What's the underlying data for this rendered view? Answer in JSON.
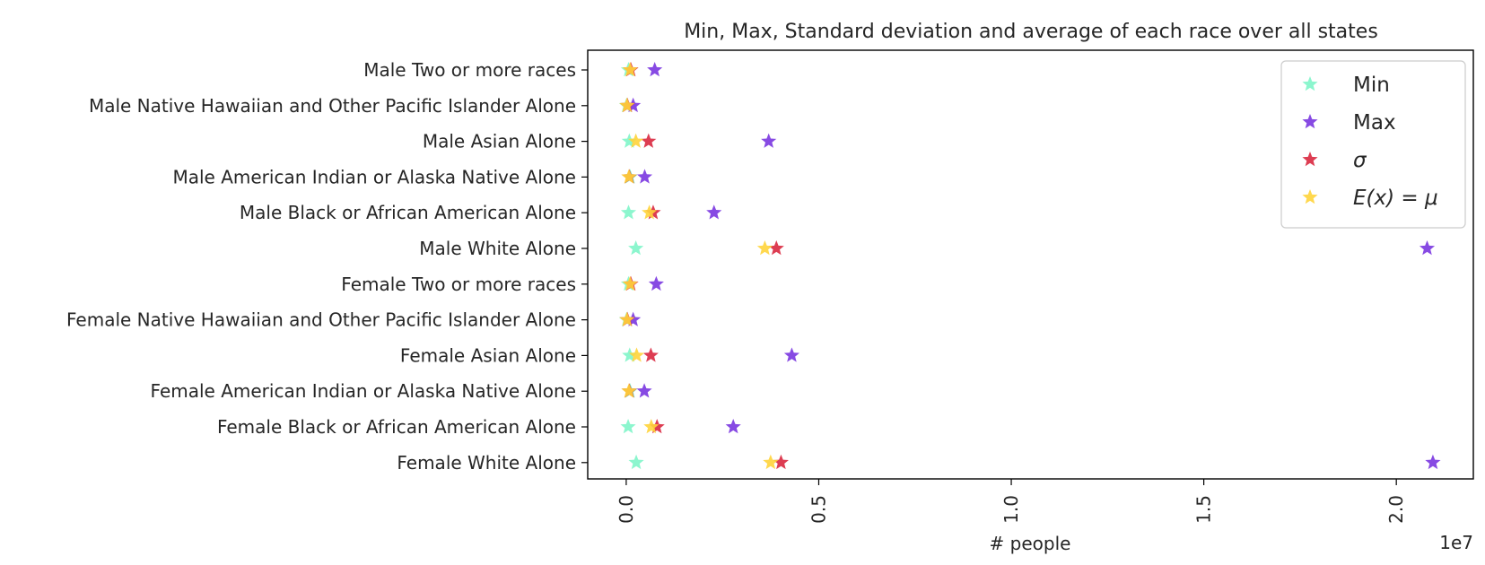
{
  "chart_data": {
    "type": "scatter",
    "title": "Min, Max, Standard deviation and average of each race over all states",
    "xlabel": "# people",
    "ylabel": "",
    "x_offset_label": "1e7",
    "x_multiplier": 10000000,
    "xlim": [
      -0.1,
      2.2
    ],
    "xticks": [
      0.0,
      0.5,
      1.0,
      1.5,
      2.0
    ],
    "xtick_labels": [
      "0.0",
      "0.5",
      "1.0",
      "1.5",
      "2.0"
    ],
    "grid": false,
    "legend_position": "top-right",
    "categories": [
      "Male Two or more races",
      "Male Native Hawaiian and Other Pacific Islander Alone",
      "Male Asian Alone",
      "Male American Indian or Alaska Native Alone",
      "Male Black or African American Alone",
      "Male White Alone",
      "Female Two or more races",
      "Female Native Hawaiian and Other Pacific Islander Alone",
      "Female Asian Alone",
      "Female American Indian or Alaska Native Alone",
      "Female Black or African American Alone",
      "Female White Alone"
    ],
    "series": [
      {
        "name": "Min",
        "color": "#7ff5c9",
        "values": [
          0.006,
          0.001,
          0.008,
          0.01,
          0.006,
          0.025,
          0.006,
          0.001,
          0.009,
          0.01,
          0.005,
          0.026
        ]
      },
      {
        "name": "Max",
        "color": "#7a36e0",
        "values": [
          0.074,
          0.018,
          0.37,
          0.048,
          0.228,
          2.08,
          0.078,
          0.018,
          0.43,
          0.047,
          0.278,
          2.095
        ]
      },
      {
        "name": "σ",
        "color": "#d9283f",
        "values": [
          0.012,
          0.003,
          0.058,
          0.008,
          0.07,
          0.39,
          0.012,
          0.003,
          0.064,
          0.008,
          0.08,
          0.402
        ]
      },
      {
        "name": "E(x) = μ",
        "color": "#ffd43b",
        "values": [
          0.01,
          0.002,
          0.025,
          0.007,
          0.06,
          0.36,
          0.01,
          0.002,
          0.027,
          0.007,
          0.065,
          0.375
        ]
      }
    ]
  }
}
